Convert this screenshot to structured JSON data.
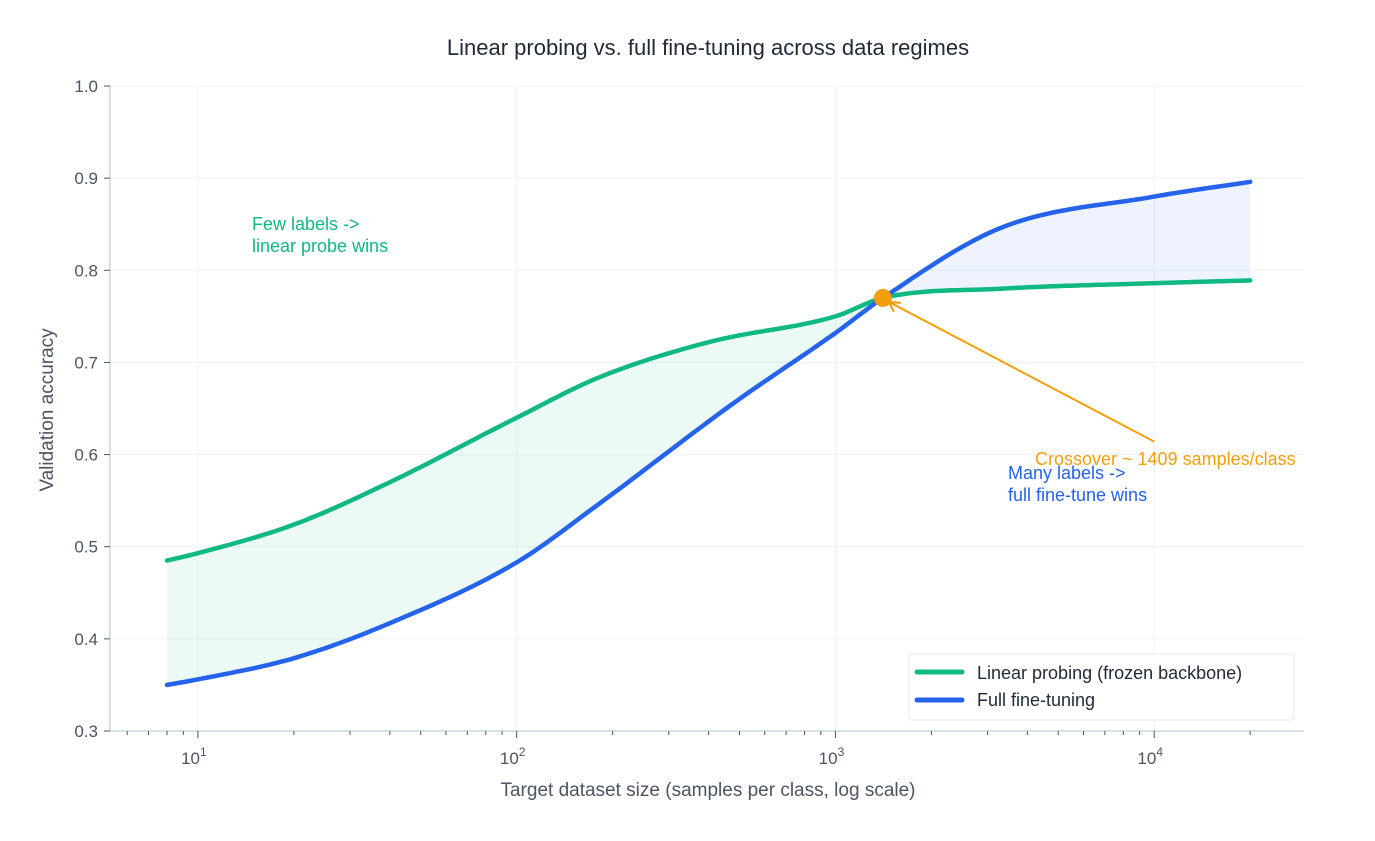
{
  "chart_data": {
    "type": "line",
    "title": "Linear probing vs. full fine-tuning across data regimes",
    "xlabel": "Target dataset size (samples per class, log scale)",
    "ylabel": "Validation accuracy",
    "xscale": "log",
    "xlim": [
      5.3,
      29500
    ],
    "ylim": [
      0.3,
      1.0
    ],
    "xticks": [
      10,
      100,
      1000,
      10000
    ],
    "xtick_labels": [
      {
        "base": "10",
        "exp": "1"
      },
      {
        "base": "10",
        "exp": "2"
      },
      {
        "base": "10",
        "exp": "3"
      },
      {
        "base": "10",
        "exp": "4"
      }
    ],
    "yticks": [
      "0.3",
      "0.4",
      "0.5",
      "0.6",
      "0.7",
      "0.8",
      "0.9",
      "1.0"
    ],
    "grid": true,
    "legend_position": "bottom-right",
    "series": [
      {
        "name": "Linear probing (frozen backbone)",
        "color": "#10b981",
        "x": [
          8,
          10,
          20,
          40,
          100,
          182,
          400,
          1000,
          1409,
          3300,
          10000,
          20000
        ],
        "y": [
          0.485,
          0.493,
          0.524,
          0.57,
          0.64,
          0.684,
          0.722,
          0.75,
          0.77,
          0.78,
          0.786,
          0.789
        ]
      },
      {
        "name": "Full fine-tuning",
        "color": "#2563eb",
        "x": [
          8,
          10,
          20,
          40,
          100,
          182,
          480,
          1000,
          1409,
          3300,
          10000,
          20000
        ],
        "y": [
          0.35,
          0.356,
          0.379,
          0.417,
          0.483,
          0.547,
          0.656,
          0.732,
          0.77,
          0.846,
          0.88,
          0.896
        ]
      }
    ],
    "fill_colors": {
      "linear_wins": "#10b981",
      "finetune_wins": "#2563eb"
    },
    "crossover": {
      "x": 1409,
      "y": 0.77,
      "color": "#f59e0b",
      "label": "Crossover ~ 1409 samples/class"
    },
    "annotations": [
      {
        "lines": [
          "Few labels ->",
          "linear probe wins"
        ],
        "color": "#10b981"
      },
      {
        "lines": [
          "Many labels ->",
          "full fine-tune wins"
        ],
        "color": "#2563eb"
      }
    ]
  }
}
